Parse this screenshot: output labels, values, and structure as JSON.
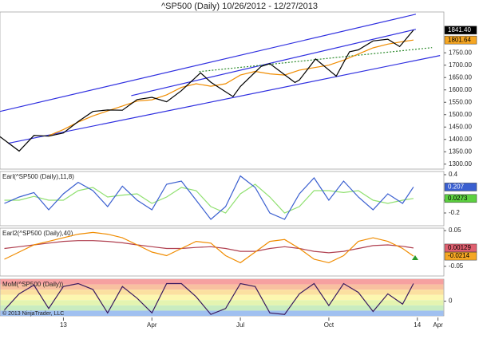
{
  "copyright": "© 2013 NinjaTrader, LLC",
  "chart_data": [
    {
      "type": "line",
      "title": "^SP500 (Daily)  10/26/2012 - 12/27/2013",
      "ylim": [
        1280,
        1915
      ],
      "yticks": [
        {
          "value": 1300,
          "label": "1300.00"
        },
        {
          "value": 1350,
          "label": "1350.00"
        },
        {
          "value": 1400,
          "label": "1400.00"
        },
        {
          "value": 1450,
          "label": "1450.00"
        },
        {
          "value": 1500,
          "label": "1500.00"
        },
        {
          "value": 1550,
          "label": "1550.00"
        },
        {
          "value": 1600,
          "label": "1600.00"
        },
        {
          "value": 1650,
          "label": "1650.00"
        },
        {
          "value": 1700,
          "label": "1700.00"
        },
        {
          "value": 1750,
          "label": "1750.00"
        }
      ],
      "series": [
        {
          "color": "#3030e0",
          "x": [
            -2.15,
            11.95
          ],
          "values": [
            1513,
            1906
          ]
        },
        {
          "color": "#3030e0",
          "x": [
            2.3,
            11.95
          ],
          "values": [
            1577,
            1845
          ]
        },
        {
          "color": "#3030e0",
          "x": [
            -1.88,
            12.77
          ],
          "values": [
            1384,
            1739
          ]
        },
        {
          "color": "#2e8b2e",
          "dash": true,
          "x": [
            4.6,
            12.5
          ],
          "values": [
            1674,
            1771
          ]
        },
        {
          "color": "#f08c00",
          "x": [
            -0.5,
            0,
            0.5,
            1,
            1.5,
            2,
            2.5,
            3,
            3.5,
            4,
            4.5,
            5,
            5.5,
            6,
            6.5,
            7,
            7.5,
            8,
            8.5,
            9,
            9.5,
            10,
            10.5,
            11,
            11.5,
            11.87
          ],
          "values": [
            1415,
            1440,
            1470,
            1495,
            1515,
            1535,
            1555,
            1560,
            1580,
            1610,
            1625,
            1615,
            1625,
            1660,
            1675,
            1665,
            1660,
            1680,
            1690,
            1700,
            1720,
            1745,
            1770,
            1785,
            1795,
            1801.64
          ]
        },
        {
          "color": "#000000",
          "x": [
            -2.15,
            -1.5,
            -1,
            -0.5,
            0,
            0.5,
            1,
            1.5,
            2,
            2.5,
            3,
            3.5,
            4,
            4.65,
            5,
            5.75,
            6,
            6.7,
            7,
            7.85,
            8,
            8.55,
            9.25,
            9.7,
            10,
            10.5,
            11,
            11.4,
            11.87
          ],
          "values": [
            1411,
            1353,
            1416,
            1413,
            1426,
            1472,
            1513,
            1519,
            1518,
            1561,
            1570,
            1552,
            1597,
            1669,
            1631,
            1573,
            1614,
            1695,
            1706,
            1630,
            1640,
            1725,
            1656,
            1754,
            1762,
            1798,
            1805,
            1775,
            1841.4
          ]
        }
      ],
      "markers": [
        {
          "value": 1841.4,
          "label": "1841.40",
          "color": "#000000",
          "text_color": "#ffffff"
        },
        {
          "value": 1801.64,
          "label": "1801.64",
          "color": "#f5a623",
          "text_color": "#000000"
        }
      ]
    },
    {
      "type": "line",
      "title": "Earl(^SP500 (Daily),11,8)",
      "ylim": [
        -0.4,
        0.45
      ],
      "yticks": [
        0.4,
        0,
        -0.2
      ],
      "series": [
        {
          "color": "#90e070",
          "x": [
            -2,
            -1.5,
            -1,
            -0.5,
            0,
            0.5,
            1,
            1.5,
            2,
            2.5,
            3,
            3.5,
            4,
            4.5,
            5,
            5.5,
            6,
            6.5,
            7,
            7.5,
            8,
            8.5,
            9,
            9.5,
            10,
            10.5,
            11,
            11.5,
            11.87
          ],
          "values": [
            0,
            0,
            0.06,
            0,
            0,
            0.15,
            0.2,
            0.05,
            0.08,
            0.1,
            -0.05,
            0.05,
            0.2,
            0.15,
            -0.1,
            -0.2,
            0.1,
            0.25,
            0.05,
            -0.2,
            -0.1,
            0.15,
            0.15,
            0.12,
            0.15,
            0,
            -0.05,
            0,
            0.0273
          ]
        },
        {
          "color": "#3a5fd0",
          "x": [
            -2,
            -1.5,
            -1,
            -0.5,
            0,
            0.5,
            1,
            1.5,
            2,
            2.5,
            3,
            3.5,
            4,
            4.5,
            5,
            5.5,
            6,
            6.5,
            7,
            7.5,
            8,
            8.5,
            9,
            9.5,
            10,
            10.5,
            11,
            11.5,
            11.87
          ],
          "values": [
            -0.05,
            0.05,
            0.12,
            -0.15,
            0.1,
            0.28,
            0.15,
            -0.1,
            0.22,
            0,
            -0.15,
            0.25,
            0.3,
            0,
            -0.3,
            -0.1,
            0.38,
            0.2,
            -0.2,
            -0.3,
            0.1,
            0.35,
            0,
            0.3,
            0.05,
            -0.15,
            0.1,
            -0.05,
            0.207
          ]
        }
      ],
      "markers": [
        {
          "value": 0.207,
          "label": "0.207",
          "color": "#3a5fd0",
          "text_color": "#ffffff"
        },
        {
          "value": 0.0273,
          "label": "0.0273",
          "color": "#5cd040",
          "text_color": "#000000"
        }
      ]
    },
    {
      "type": "line",
      "title": "Earl2(^SP500 (Daily),40)",
      "ylim": [
        -0.077,
        0.057
      ],
      "yticks": [
        0.05,
        -0.05
      ],
      "series": [
        {
          "color": "#b04050",
          "x": [
            -2,
            -1.5,
            -1,
            -0.5,
            0,
            0.5,
            1,
            1.5,
            2,
            2.5,
            3,
            3.5,
            4,
            4.5,
            5,
            5.5,
            6,
            6.5,
            7,
            7.5,
            8,
            8.5,
            9,
            9.5,
            10,
            10.5,
            11,
            11.5,
            11.87
          ],
          "values": [
            0,
            0.005,
            0.01,
            0.015,
            0.02,
            0.022,
            0.022,
            0.02,
            0.016,
            0.01,
            0.005,
            0,
            0,
            0.003,
            0.005,
            0,
            -0.008,
            -0.008,
            0,
            0.005,
            0,
            -0.008,
            -0.012,
            -0.008,
            0,
            0.008,
            0.01,
            0.006,
            0.00129
          ]
        },
        {
          "color": "#f08c00",
          "x": [
            -2,
            -1.5,
            -1,
            -0.5,
            0,
            0.5,
            1,
            1.5,
            2,
            2.5,
            3,
            3.5,
            4,
            4.5,
            5,
            5.5,
            6,
            6.5,
            7,
            7.5,
            8,
            8.5,
            9,
            9.5,
            10,
            10.5,
            11,
            11.5,
            11.87
          ],
          "values": [
            -0.03,
            -0.01,
            0.01,
            0.02,
            0.03,
            0.04,
            0.045,
            0.04,
            0.03,
            0.01,
            -0.01,
            -0.02,
            0,
            0.02,
            0.015,
            -0.02,
            -0.04,
            -0.01,
            0.02,
            0.025,
            0,
            -0.03,
            -0.04,
            -0.02,
            0.02,
            0.03,
            0.02,
            0,
            -0.0214
          ]
        }
      ],
      "markers": [
        {
          "value": 0.00129,
          "label": "0.00129",
          "color": "#e06070",
          "text_color": "#000000"
        },
        {
          "value": -0.0214,
          "label": "-0.0214",
          "color": "#f5a623",
          "text_color": "#000000"
        }
      ]
    },
    {
      "type": "line",
      "title": "MoM(^SP500 (Daily))",
      "ylim": [
        -1,
        1.5
      ],
      "yticks": [
        0
      ],
      "bands": true,
      "series": [
        {
          "color": "#3a1a60",
          "x": [
            -2,
            -1.5,
            -1,
            -0.5,
            0,
            0.5,
            1,
            1.5,
            2,
            2.5,
            3,
            3.5,
            4,
            4.5,
            5,
            5.5,
            6,
            6.5,
            7,
            7.5,
            8,
            8.5,
            9,
            9.5,
            10,
            10.5,
            11,
            11.5,
            11.87
          ],
          "values": [
            -0.6,
            0.5,
            1.1,
            -0.5,
            1,
            1.2,
            0.8,
            -0.8,
            1,
            0.2,
            -0.8,
            1.2,
            1.2,
            0.3,
            -0.9,
            -0.5,
            1.2,
            1,
            -0.8,
            -0.9,
            0.5,
            1.2,
            -0.3,
            1.2,
            0.6,
            -0.7,
            0.5,
            -0.2,
            1.2
          ]
        }
      ],
      "xlim": [
        -2.15,
        12.9
      ],
      "xticks": [
        {
          "value": 0,
          "label": "13"
        },
        {
          "value": 3,
          "label": "Apr"
        },
        {
          "value": 6,
          "label": "Jul"
        },
        {
          "value": 9,
          "label": "Oct"
        },
        {
          "value": 12,
          "label": "14"
        },
        {
          "value": 12.7,
          "label": "Apr"
        }
      ]
    }
  ]
}
